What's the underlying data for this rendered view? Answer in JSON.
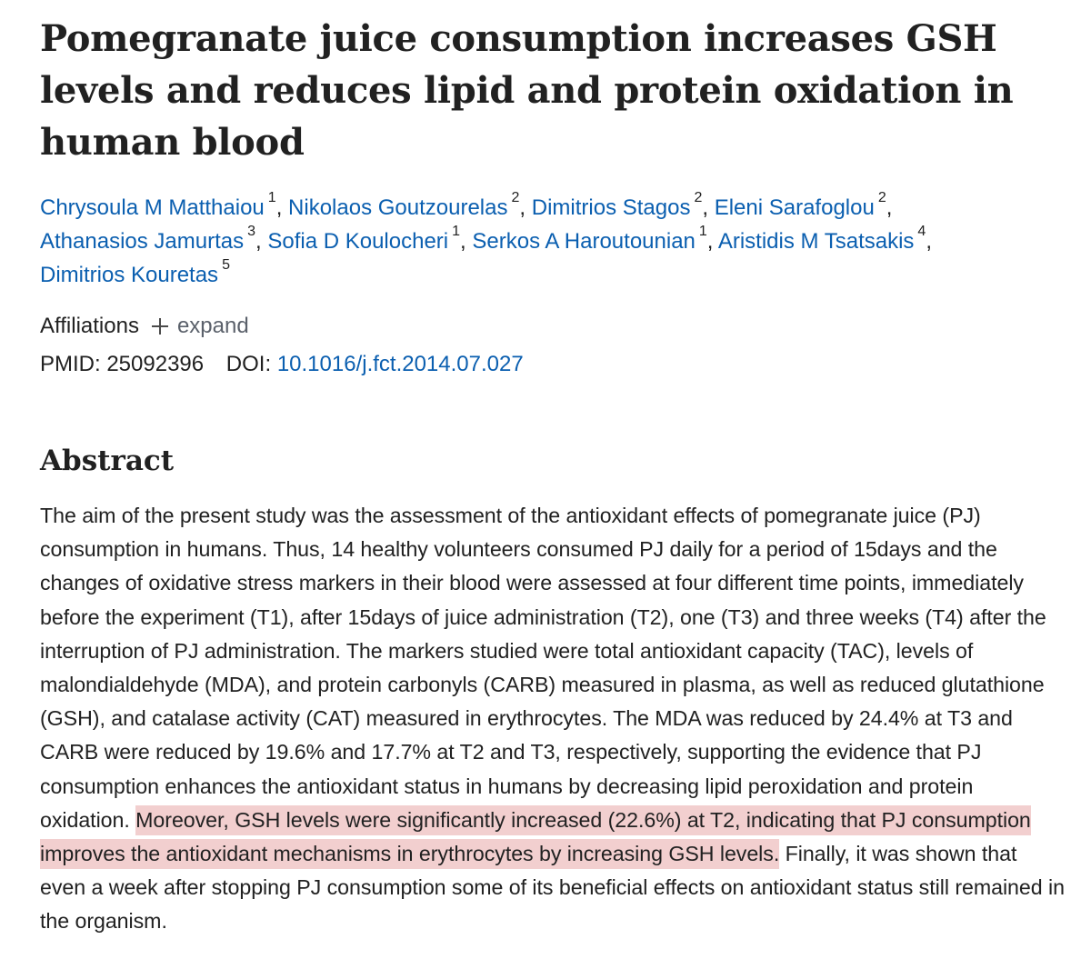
{
  "article": {
    "title": "Pomegranate juice consumption increases GSH levels and reduces lipid and protein oxidation in human blood",
    "authors": [
      {
        "name": "Chrysoula M Matthaiou",
        "aff": "1"
      },
      {
        "name": "Nikolaos Goutzourelas",
        "aff": "2"
      },
      {
        "name": "Dimitrios Stagos",
        "aff": "2"
      },
      {
        "name": "Eleni Sarafoglou",
        "aff": "2"
      },
      {
        "name": "Athanasios Jamurtas",
        "aff": "3"
      },
      {
        "name": "Sofia D Koulocheri",
        "aff": "1"
      },
      {
        "name": "Serkos A Haroutounian",
        "aff": "1"
      },
      {
        "name": "Aristidis M Tsatsakis",
        "aff": "4"
      },
      {
        "name": "Dimitrios Kouretas",
        "aff": "5"
      }
    ],
    "affiliations_label": "Affiliations",
    "expand_label": "expand",
    "pmid_label": "PMID: 25092396",
    "doi_label": "DOI:",
    "doi_value": "10.1016/j.fct.2014.07.027"
  },
  "abstract": {
    "heading": "Abstract",
    "text_before": "The aim of the present study was the assessment of the antioxidant effects of pomegranate juice (PJ) consumption in humans. Thus, 14 healthy volunteers consumed PJ daily for a period of 15days and the changes of oxidative stress markers in their blood were assessed at four different time points, immediately before the experiment (T1), after 15days of juice administration (T2), one (T3) and three weeks (T4) after the interruption of PJ administration. The markers studied were total antioxidant capacity (TAC), levels of malondialdehyde (MDA), and protein carbonyls (CARB) measured in plasma, as well as reduced glutathione (GSH), and catalase activity (CAT) measured in erythrocytes. The MDA was reduced by 24.4% at T3 and CARB were reduced by 19.6% and 17.7% at T2 and T3, respectively, supporting the evidence that PJ consumption enhances the antioxidant status in humans by decreasing lipid peroxidation and protein oxidation. ",
    "text_highlight": "Moreover, GSH levels were significantly increased (22.6%) at T2, indicating that PJ consumption improves the antioxidant mechanisms in erythrocytes by increasing GSH levels.",
    "text_after": " Finally, it was shown that even a week after stopping PJ consumption some of its beneficial effects on antioxidant status still remained in the organism.",
    "highlight_color": "#f2cfcf"
  },
  "colors": {
    "link": "#0b5fb0",
    "text": "#212121",
    "muted": "#5b616b"
  }
}
